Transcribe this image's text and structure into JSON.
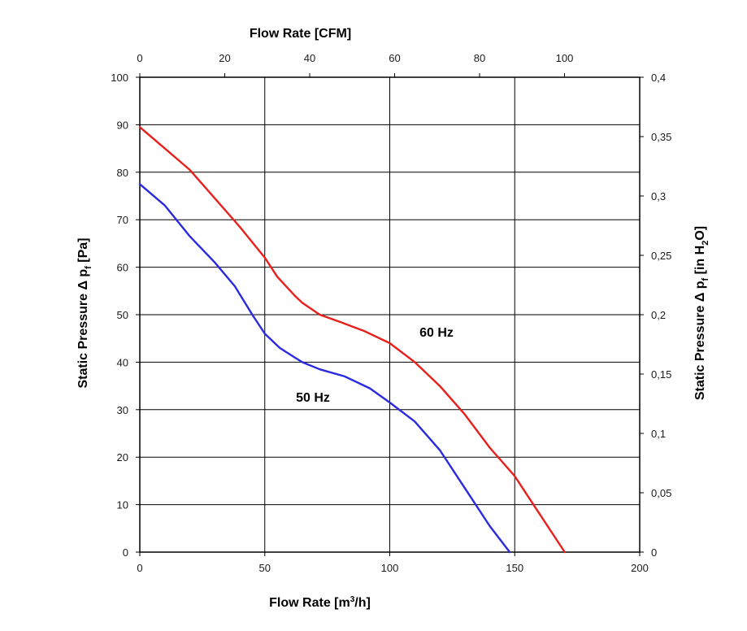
{
  "chart_data": {
    "type": "line",
    "xlabel_bottom": "Flow Rate [m³/h]",
    "xlabel_top": "Flow Rate [CFM]",
    "ylabel_left": "Static Pressure Δ pf [Pa]",
    "ylabel_right": "Static Pressure Δ pf [in H2O]",
    "xlim": [
      0,
      200
    ],
    "ylim": [
      0,
      100
    ],
    "xlim_top": [
      0,
      117.7
    ],
    "ylim_right": [
      0,
      0.4
    ],
    "x_ticks": [
      "0",
      "50",
      "100",
      "150",
      "200"
    ],
    "y_ticks": [
      "0",
      "10",
      "20",
      "30",
      "40",
      "50",
      "60",
      "70",
      "80",
      "90",
      "100"
    ],
    "x_top_ticks": [
      "0",
      "20",
      "40",
      "60",
      "80",
      "100"
    ],
    "y_right_ticks": [
      "0",
      "0,05",
      "0,1",
      "0,15",
      "0,2",
      "0,25",
      "0,3",
      "0,35",
      "0,4"
    ],
    "grid": true,
    "series": [
      {
        "name": "60 Hz",
        "color": "#e8201c",
        "x": [
          0,
          10,
          20,
          30,
          40,
          50,
          55,
          62,
          65,
          72,
          80,
          90,
          100,
          110,
          120,
          130,
          140,
          150,
          160,
          170
        ],
        "y": [
          89.5,
          85,
          80.5,
          74.5,
          68.5,
          62,
          58,
          54,
          52.5,
          50,
          48.5,
          46.5,
          44,
          40,
          35,
          29,
          22,
          16,
          8,
          0
        ]
      },
      {
        "name": "50 Hz",
        "color": "#2a2ae0",
        "x": [
          0,
          10,
          20,
          30,
          38,
          45,
          50,
          56,
          62,
          65,
          72,
          82,
          92,
          100,
          110,
          120,
          130,
          140,
          148
        ],
        "y": [
          77.5,
          73,
          66.5,
          61,
          56,
          50,
          46,
          43,
          41,
          40,
          38.5,
          37,
          34.5,
          31.5,
          27.5,
          21.5,
          13.5,
          5.5,
          0
        ]
      }
    ],
    "annotations": [
      {
        "text": "60 Hz",
        "series": "60 Hz"
      },
      {
        "text": "50 Hz",
        "series": "50 Hz"
      }
    ]
  }
}
